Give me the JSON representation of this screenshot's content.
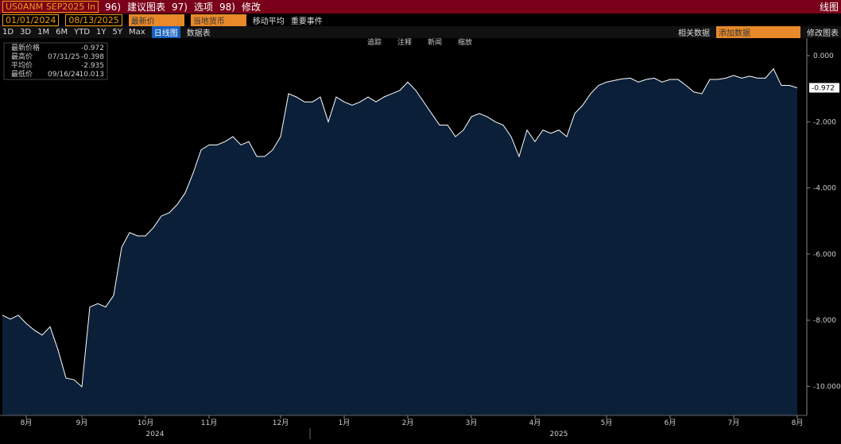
{
  "toolbar": {
    "ticker": "US0ANM SEP2025 In",
    "menus": [
      {
        "key": "96)",
        "label": "建议图表"
      },
      {
        "key": "97)",
        "label": "选项"
      },
      {
        "key": "98)",
        "label": "修改"
      }
    ],
    "view": "线图",
    "start_date": "01/01/2024",
    "end_date": "08/13/2025",
    "field": "最新价",
    "currency": "当地货币",
    "moving_avg": "移动平均",
    "events": "重要事件",
    "ranges": [
      "1D",
      "3D",
      "1M",
      "6M",
      "YTD",
      "1Y",
      "5Y",
      "Max"
    ],
    "chart_mode": "日线图",
    "data_table": "数据表",
    "related": "相关数据",
    "add_data": "添加数据",
    "edit_chart": "修改图表",
    "tools": [
      "追踪",
      "注释",
      "新闻",
      "缩放"
    ]
  },
  "legend": {
    "rows": [
      {
        "label": "最新价格",
        "value": -0.972
      },
      {
        "label": "最高价",
        "date": "07/31/25",
        "value": -0.398
      },
      {
        "label": "平均价",
        "value": -2.935
      },
      {
        "label": "最低价",
        "date": "09/16/24",
        "value": -10.013
      }
    ]
  },
  "chart_data": {
    "type": "area",
    "color": "#0b2038",
    "line_color": "#ffffff",
    "categories": [
      null,
      null,
      null,
      "8月",
      null,
      null,
      null,
      null,
      null,
      null,
      "9月",
      null,
      null,
      null,
      null,
      null,
      null,
      null,
      "10月",
      null,
      null,
      null,
      null,
      null,
      null,
      null,
      "11月",
      null,
      null,
      null,
      null,
      null,
      null,
      null,
      null,
      "12月",
      null,
      null,
      null,
      null,
      null,
      null,
      null,
      "1月",
      null,
      null,
      null,
      null,
      null,
      null,
      null,
      "2月",
      null,
      null,
      null,
      null,
      null,
      null,
      null,
      "3月",
      null,
      null,
      null,
      null,
      null,
      null,
      null,
      "4月",
      null,
      null,
      null,
      null,
      null,
      null,
      null,
      null,
      "5月",
      null,
      null,
      null,
      null,
      null,
      null,
      null,
      "6月",
      null,
      null,
      null,
      null,
      null,
      null,
      null,
      "7月",
      null,
      null,
      null,
      null,
      null,
      null,
      null,
      "8月"
    ],
    "years": [
      "2024",
      "2025"
    ],
    "values": [
      -7.85,
      -7.97,
      -7.85,
      -8.1,
      -8.3,
      -8.45,
      -8.2,
      -8.9,
      -9.75,
      -9.8,
      -10.013,
      -7.6,
      -7.5,
      -7.6,
      -7.25,
      -5.8,
      -5.35,
      -5.45,
      -5.45,
      -5.2,
      -4.85,
      -4.75,
      -4.5,
      -4.15,
      -3.55,
      -2.85,
      -2.7,
      -2.7,
      -2.6,
      -2.45,
      -2.7,
      -2.6,
      -3.05,
      -3.05,
      -2.85,
      -2.45,
      -1.15,
      -1.25,
      -1.4,
      -1.4,
      -1.25,
      -2.0,
      -1.25,
      -1.4,
      -1.5,
      -1.4,
      -1.25,
      -1.4,
      -1.25,
      -1.15,
      -1.05,
      -0.8,
      -1.05,
      -1.4,
      -1.75,
      -2.1,
      -2.1,
      -2.45,
      -2.25,
      -1.85,
      -1.75,
      -1.85,
      -2.0,
      -2.1,
      -2.45,
      -3.05,
      -2.25,
      -2.6,
      -2.25,
      -2.35,
      -2.25,
      -2.45,
      -1.75,
      -1.5,
      -1.15,
      -0.9,
      -0.8,
      -0.75,
      -0.7,
      -0.68,
      -0.8,
      -0.72,
      -0.68,
      -0.8,
      -0.72,
      -0.72,
      -0.9,
      -1.1,
      -1.15,
      -0.72,
      -0.72,
      -0.68,
      -0.6,
      -0.68,
      -0.62,
      -0.68,
      -0.68,
      -0.398,
      -0.9,
      -0.9,
      -0.972
    ],
    "ylim": [
      -10.88,
      0.53
    ],
    "yticks": [
      {
        "value": 0,
        "label": "0.000"
      },
      {
        "value": -2,
        "label": "-2.000"
      },
      {
        "value": -4,
        "label": "-4.000"
      },
      {
        "value": -6,
        "label": "-6.000"
      },
      {
        "value": -8,
        "label": "-8.000"
      },
      {
        "value": -10,
        "label": "-10.000"
      }
    ],
    "last_label": "-0.972"
  }
}
